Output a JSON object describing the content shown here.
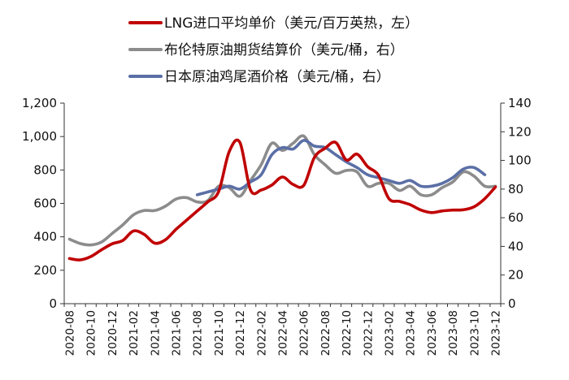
{
  "chart_data": {
    "type": "line",
    "x": [
      "2020-08",
      "2020-09",
      "2020-10",
      "2020-11",
      "2020-12",
      "2021-01",
      "2021-02",
      "2021-03",
      "2021-04",
      "2021-05",
      "2021-06",
      "2021-07",
      "2021-08",
      "2021-09",
      "2021-10",
      "2021-11",
      "2021-12",
      "2022-01",
      "2022-02",
      "2022-03",
      "2022-04",
      "2022-05",
      "2022-06",
      "2022-07",
      "2022-08",
      "2022-09",
      "2022-10",
      "2022-11",
      "2022-12",
      "2023-01",
      "2023-02",
      "2023-03",
      "2023-04",
      "2023-05",
      "2023-06",
      "2023-07",
      "2023-08",
      "2023-09",
      "2023-10",
      "2023-11",
      "2023-12"
    ],
    "xticks": [
      "2020-08",
      "2020-10",
      "2020-12",
      "2021-02",
      "2021-04",
      "2021-06",
      "2021-08",
      "2021-10",
      "2021-12",
      "2022-02",
      "2022-04",
      "2022-06",
      "2022-08",
      "2022-10",
      "2022-12",
      "2023-02",
      "2023-04",
      "2023-06",
      "2023-08",
      "2023-10",
      "2023-12"
    ],
    "left_axis": {
      "ylim": [
        0,
        1200
      ],
      "ticks": [
        "0",
        "200",
        "400",
        "600",
        "800",
        "1,000",
        "1,200"
      ],
      "tick_values": [
        0,
        200,
        400,
        600,
        800,
        1000,
        1200
      ]
    },
    "right_axis": {
      "ylim": [
        0,
        140
      ],
      "ticks": [
        "0",
        "20",
        "40",
        "60",
        "80",
        "100",
        "120",
        "140"
      ],
      "tick_values": [
        0,
        20,
        40,
        60,
        80,
        100,
        120,
        140
      ]
    },
    "series": [
      {
        "name": "LNG进口平均单价（美元/百万英热，左）",
        "axis": "left",
        "color": "#c00000",
        "values": [
          270,
          262,
          282,
          322,
          358,
          378,
          435,
          415,
          362,
          382,
          445,
          500,
          555,
          610,
          670,
          910,
          965,
          680,
          680,
          710,
          758,
          713,
          708,
          875,
          930,
          965,
          860,
          895,
          820,
          770,
          628,
          612,
          592,
          560,
          545,
          555,
          560,
          562,
          580,
          628,
          698
        ]
      },
      {
        "name": "布伦特原油期货结算价（美元/桶，右）",
        "axis": "right",
        "color": "#8c8c8c",
        "values": [
          45,
          42,
          41,
          43,
          49,
          55,
          62,
          65,
          65,
          68,
          73,
          74,
          71,
          72,
          82,
          81,
          75,
          86,
          97,
          112,
          107,
          112,
          117,
          104,
          97,
          91,
          93,
          92,
          82,
          84,
          84,
          79,
          82,
          76,
          76,
          81,
          85,
          92,
          89,
          82,
          82
        ]
      },
      {
        "name": "日本原油鸡尾酒价格（美元/桶，右）",
        "axis": "right",
        "color": "#5b6fa6",
        "values": [
          null,
          null,
          null,
          null,
          null,
          null,
          null,
          null,
          null,
          null,
          null,
          null,
          76,
          78,
          80,
          82,
          80,
          85,
          90,
          104,
          109,
          108,
          114,
          110,
          109,
          104,
          99,
          95,
          90,
          88,
          86,
          84,
          86,
          82,
          82,
          84,
          88,
          94,
          95,
          90,
          null
        ]
      }
    ]
  },
  "legend": {
    "items": [
      {
        "label": "LNG进口平均单价（美元/百万英热，左）",
        "color": "#c00000"
      },
      {
        "label": "布伦特原油期货结算价（美元/桶，右）",
        "color": "#8c8c8c"
      },
      {
        "label": "日本原油鸡尾酒价格（美元/桶，右）",
        "color": "#5b6fa6"
      }
    ]
  }
}
